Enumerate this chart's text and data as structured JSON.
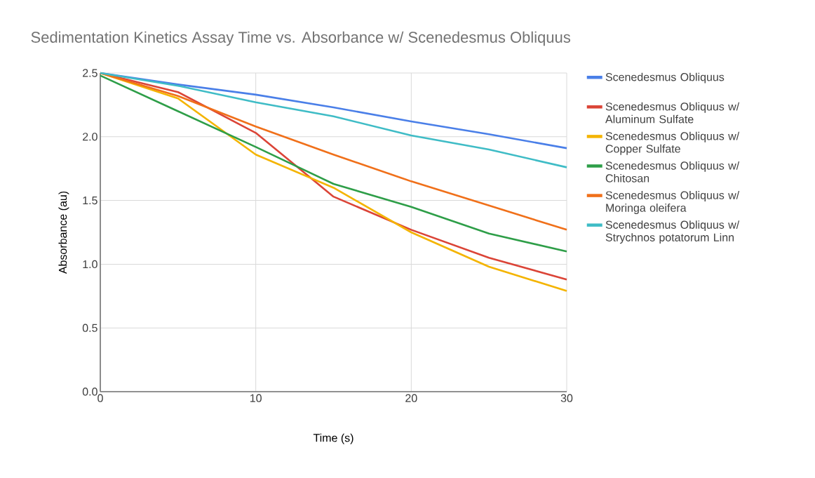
{
  "chart_data": {
    "type": "line",
    "title": "Sedimentation Kinetics Assay Time vs. Absorbance w/ Scenedesmus Obliquus",
    "xlabel": "Time (s)",
    "ylabel": "Absorbance (au)",
    "x": [
      0,
      5,
      10,
      15,
      20,
      25,
      30
    ],
    "series": [
      {
        "name": "Scenedesmus Obliquus",
        "color": "#4a7fe8",
        "values": [
          2.5,
          2.41,
          2.33,
          2.23,
          2.12,
          2.02,
          1.91
        ]
      },
      {
        "name": "Scenedesmus Obliquus w/ Aluminum Sulfate",
        "color": "#db4437",
        "values": [
          2.5,
          2.35,
          2.03,
          1.53,
          1.27,
          1.05,
          0.88
        ]
      },
      {
        "name": "Scenedesmus Obliquus w/ Copper Sulfate",
        "color": "#f4b400",
        "values": [
          2.5,
          2.3,
          1.86,
          1.6,
          1.25,
          0.98,
          0.79
        ]
      },
      {
        "name": "Scenedesmus Obliquus w/ Chitosan",
        "color": "#2e9e48",
        "values": [
          2.48,
          2.2,
          1.92,
          1.63,
          1.45,
          1.24,
          1.1
        ]
      },
      {
        "name": "Scenedesmus Obliquus w/ Moringa oleifera",
        "color": "#f0701a",
        "values": [
          2.5,
          2.32,
          2.08,
          1.86,
          1.65,
          1.46,
          1.27
        ]
      },
      {
        "name": "Scenedesmus Obliquus w/ Strychnos potatorum Linn",
        "color": "#3fbcc6",
        "values": [
          2.5,
          2.4,
          2.27,
          2.16,
          2.01,
          1.9,
          1.76
        ]
      }
    ],
    "xlim": [
      0,
      30
    ],
    "ylim": [
      0,
      2.5
    ],
    "xticks": [
      0,
      10,
      20,
      30
    ],
    "yticks": [
      {
        "value": 0,
        "label": "0.0"
      },
      {
        "value": 0.5,
        "label": "0.5"
      },
      {
        "value": 1,
        "label": "1.0"
      },
      {
        "value": 1.5,
        "label": "1.5"
      },
      {
        "value": 2,
        "label": "2.0"
      },
      {
        "value": 2.5,
        "label": "2.5"
      }
    ],
    "grid": true,
    "legend": "right"
  }
}
